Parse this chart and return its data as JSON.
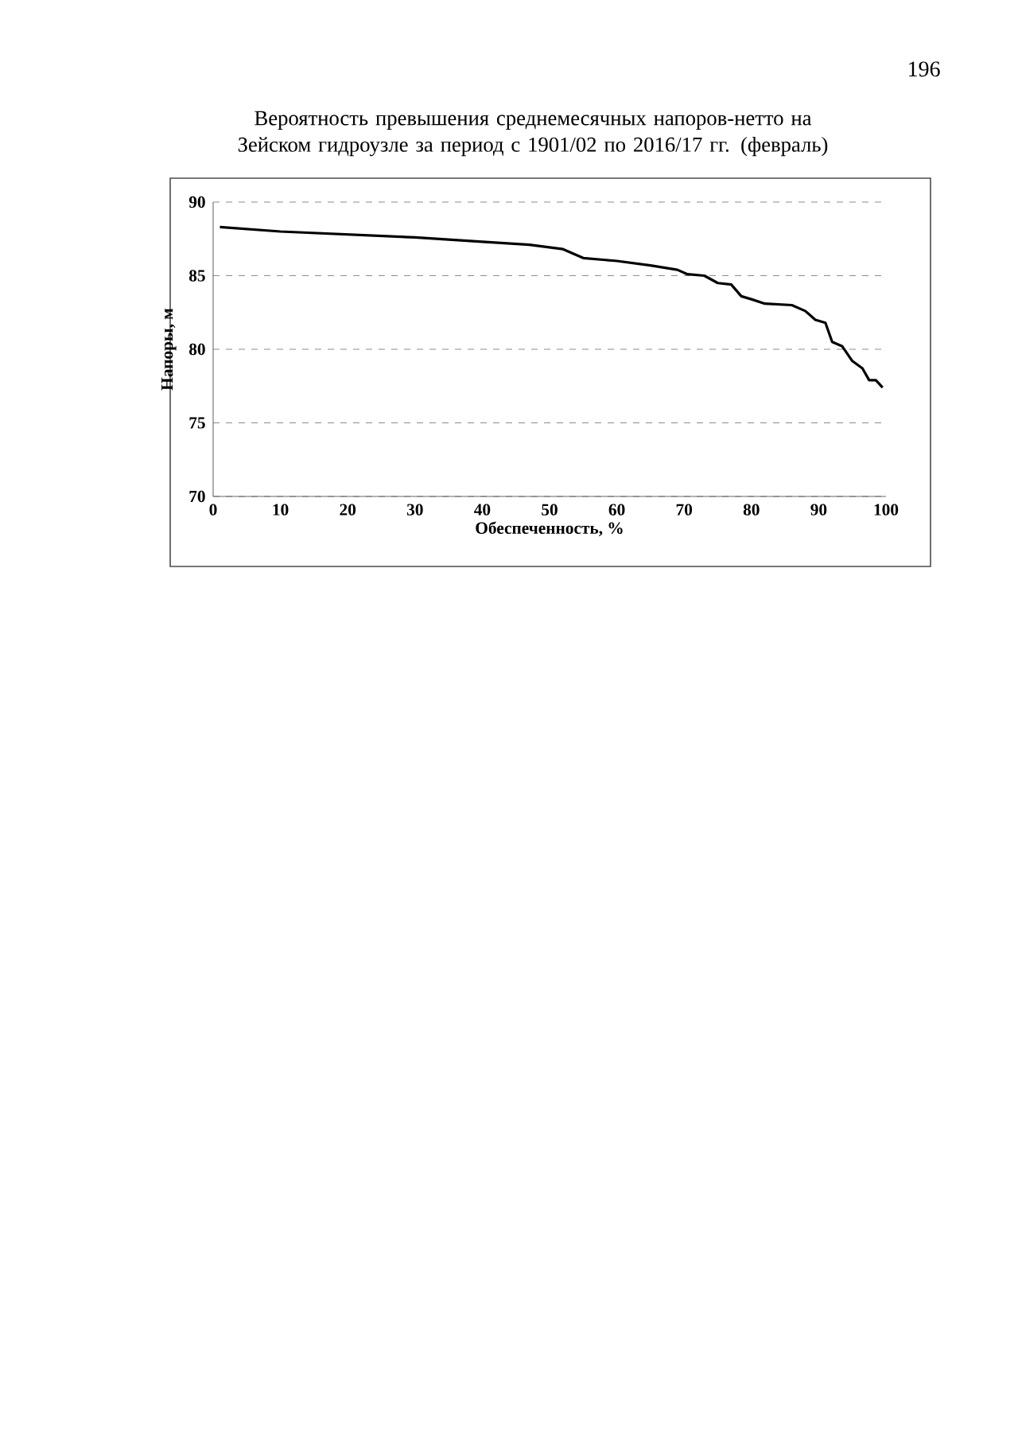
{
  "chart_data": {
    "type": "line",
    "title": "Вероятность превышения среднемесячных напоров-нетто на Зейском гидроузле за период с 1901/02 по 2016/17 гг. (февраль)",
    "xlabel": "Обеспеченность, %",
    "ylabel": "Напоры, м",
    "x": [
      1,
      10,
      20,
      30,
      40,
      47,
      52,
      55,
      60,
      65,
      69,
      70.5,
      73,
      75,
      77,
      78.5,
      80,
      82,
      86,
      88,
      89.5,
      91,
      92,
      93.5,
      95,
      96.5,
      97.5,
      98.5,
      99.5
    ],
    "values": [
      88.3,
      88.0,
      87.8,
      87.6,
      87.3,
      87.1,
      86.8,
      86.2,
      86.0,
      85.7,
      85.4,
      85.1,
      85.0,
      84.5,
      84.4,
      83.6,
      83.4,
      83.1,
      83.0,
      82.6,
      82.0,
      81.8,
      80.5,
      80.2,
      79.2,
      78.7,
      77.9,
      77.9,
      77.4
    ],
    "color": "#000000",
    "xlim": [
      0,
      100
    ],
    "ylim": [
      70,
      90
    ],
    "xticks": [
      0,
      10,
      20,
      30,
      40,
      50,
      60,
      70,
      80,
      90,
      100
    ],
    "yticks": [
      70,
      75,
      80,
      85,
      90
    ],
    "grid": "y",
    "annotations": [
      "196"
    ]
  }
}
